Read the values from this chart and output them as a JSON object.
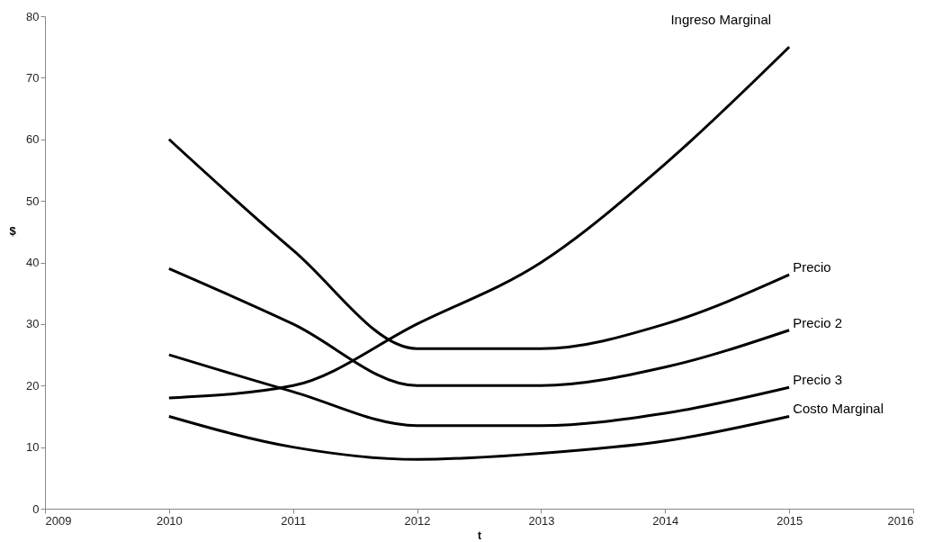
{
  "chart_data": {
    "type": "line",
    "xlabel": "t",
    "ylabel": "$",
    "x": [
      2010,
      2011,
      2012,
      2013,
      2014,
      2015
    ],
    "series": [
      {
        "name": "Ingreso Marginal",
        "color": "#000000",
        "values": [
          18,
          20,
          30,
          40,
          56,
          75
        ]
      },
      {
        "name": "Precio",
        "color": "#000000",
        "values": [
          60,
          42,
          26,
          26,
          30,
          38
        ]
      },
      {
        "name": "Precio 2",
        "color": "#000000",
        "values": [
          39,
          30,
          20,
          20,
          23,
          29
        ]
      },
      {
        "name": "Precio 3",
        "color": "#000000",
        "values": [
          25,
          19,
          13.5,
          13.5,
          15.5,
          19.7
        ]
      },
      {
        "name": "Costo Marginal",
        "color": "#000000",
        "values": [
          15,
          10,
          8,
          9,
          11,
          15
        ]
      }
    ],
    "xlim": [
      2009,
      2016
    ],
    "xticks": [
      2009,
      2010,
      2011,
      2012,
      2013,
      2014,
      2015,
      2016
    ],
    "ylim": [
      0,
      80
    ],
    "yticks": [
      0,
      10,
      20,
      30,
      40,
      50,
      60,
      70,
      80
    ],
    "grid": false,
    "legend": false,
    "marker": "none",
    "line_style": "solid"
  }
}
